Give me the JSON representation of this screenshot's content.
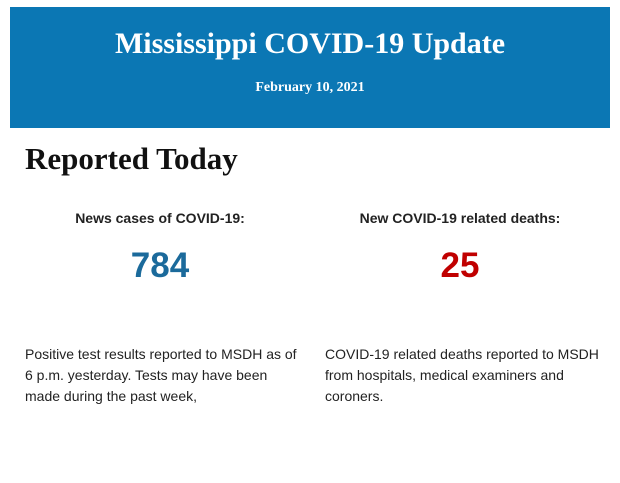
{
  "header": {
    "title": "Mississippi COVID-19 Update",
    "date": "February 10, 2021"
  },
  "section": {
    "title": "Reported Today"
  },
  "stats": [
    {
      "label": "News cases of COVID-19:",
      "value": 784,
      "description": "Positive test results reported to MSDH as of 6 p.m. yesterday. Tests may have been made during the past week,"
    },
    {
      "label": "New COVID-19 related deaths:",
      "value": 25,
      "description": "COVID-19 related deaths reported to MSDH from hospitals, medical examiners and coroners."
    }
  ]
}
